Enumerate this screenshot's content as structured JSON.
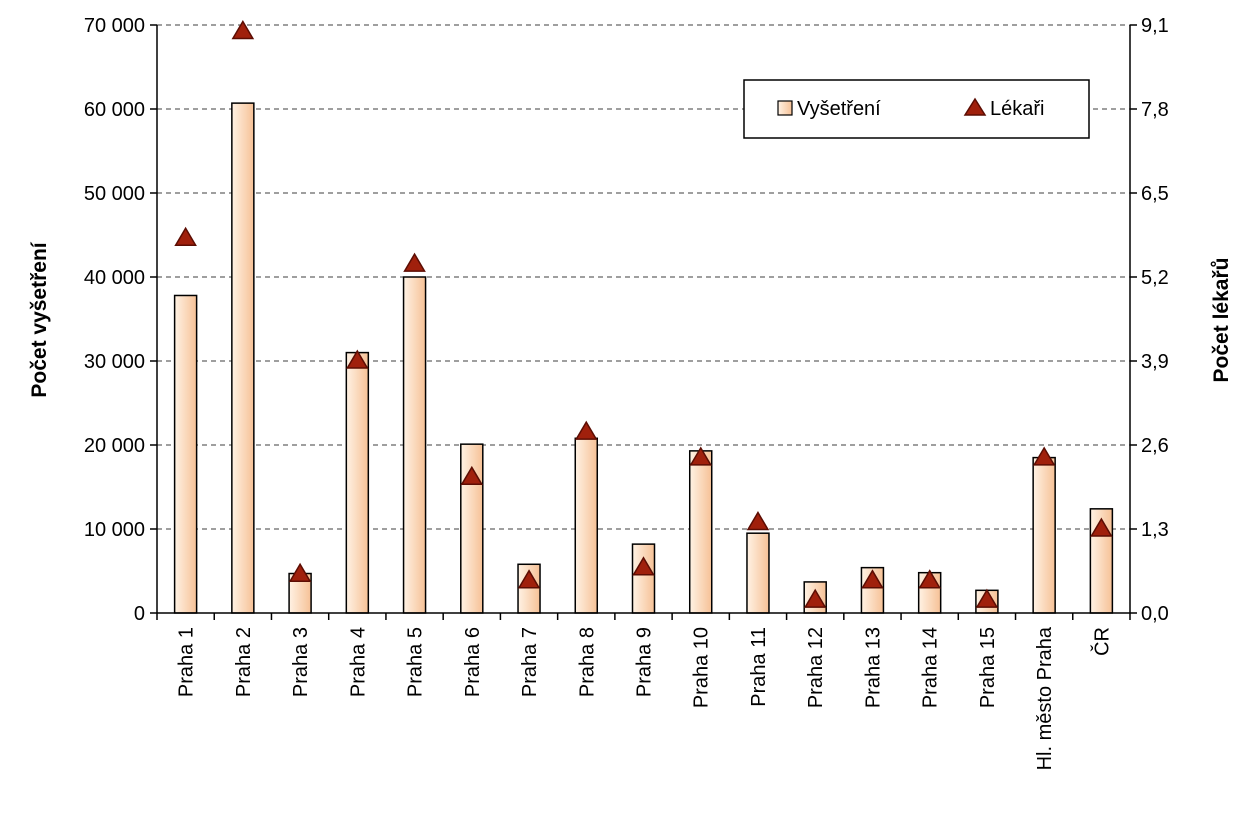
{
  "chart_data": {
    "type": "bar",
    "categories": [
      "Praha 1",
      "Praha 2",
      "Praha 3",
      "Praha 4",
      "Praha 5",
      "Praha 6",
      "Praha 7",
      "Praha 8",
      "Praha 9",
      "Praha 10",
      "Praha 11",
      "Praha 12",
      "Praha 13",
      "Praha 14",
      "Praha 15",
      "Hl. město Praha",
      "ČR"
    ],
    "series": [
      {
        "name": "Vyšetření",
        "type": "bar",
        "axis": "left",
        "values": [
          37800,
          60700,
          4700,
          31000,
          40000,
          20100,
          5800,
          20800,
          8200,
          19300,
          9500,
          3700,
          5400,
          4800,
          2700,
          18500,
          12400
        ]
      },
      {
        "name": "Lékaři",
        "type": "scatter",
        "marker": "triangle",
        "axis": "right",
        "values": [
          5.8,
          9.0,
          0.6,
          3.9,
          5.4,
          2.1,
          0.5,
          2.8,
          0.7,
          2.4,
          1.4,
          0.2,
          0.5,
          0.5,
          0.2,
          2.4,
          1.3
        ]
      }
    ],
    "ylabel": "Počet vyšetření",
    "y2label": "Počet lékařů",
    "ylim": [
      0,
      70000
    ],
    "y2lim": [
      0,
      9.1
    ],
    "yticks": [
      "0",
      "10 000",
      "20 000",
      "30 000",
      "40 000",
      "50 000",
      "60 000",
      "70 000"
    ],
    "y2ticks": [
      "0,0",
      "1,3",
      "2,6",
      "3,9",
      "5,2",
      "6,5",
      "7,8",
      "9,1"
    ],
    "grid": true,
    "legend_position": "top-right",
    "colors": {
      "bar_light": "#fff2e4",
      "bar_dark": "#f6c196",
      "bar_stroke": "#000000",
      "marker_fill": "#a0200c",
      "marker_stroke": "#5c0d03",
      "grid": "#000000"
    }
  }
}
